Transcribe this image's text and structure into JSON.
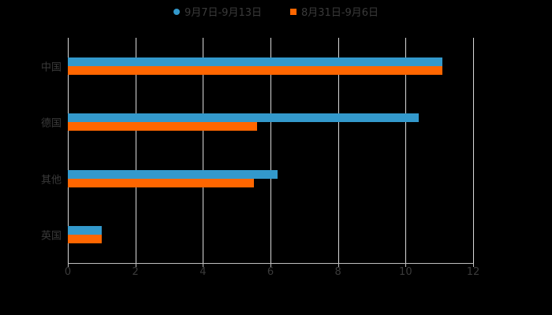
{
  "colors": {
    "series1": "#3399CC",
    "series2": "#FF6600",
    "background": "#000000",
    "text": "#3a3a3a",
    "grid": "#d9d9d9"
  },
  "legend": [
    {
      "label": "9月7日-9月13日",
      "shape": "circle"
    },
    {
      "label": "8月31日-9月6日",
      "shape": "square"
    }
  ],
  "x_ticks": [
    "0",
    "2",
    "4",
    "6",
    "8",
    "10",
    "12"
  ],
  "categories": [
    "中国",
    "德国",
    "其他",
    "英国"
  ],
  "chart_data": {
    "type": "bar",
    "orientation": "horizontal",
    "title": "",
    "xlabel": "",
    "ylabel": "",
    "categories": [
      "中国",
      "德国",
      "其他",
      "英国"
    ],
    "series": [
      {
        "name": "9月7日-9月13日",
        "color": "#3399CC",
        "values": [
          11.1,
          10.4,
          6.2,
          1.0
        ]
      },
      {
        "name": "8月31日-9月6日",
        "color": "#FF6600",
        "values": [
          11.1,
          5.6,
          5.5,
          1.0
        ]
      }
    ],
    "xlim": [
      0,
      12
    ],
    "x_ticks": [
      0,
      2,
      4,
      6,
      8,
      10,
      12
    ],
    "grid": true,
    "legend_position": "top"
  }
}
